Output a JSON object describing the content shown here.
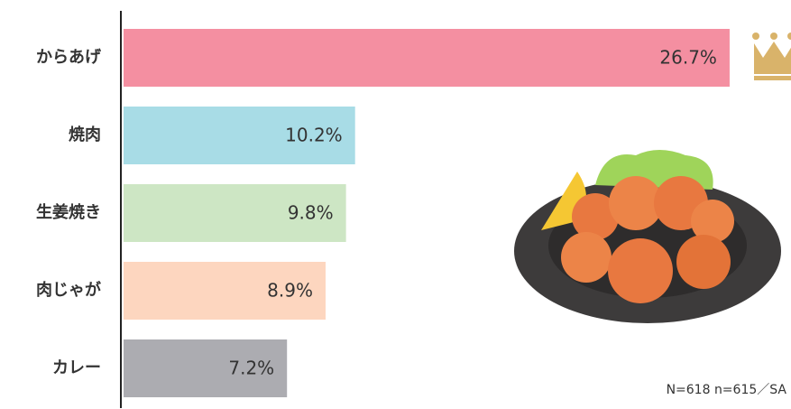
{
  "chart_data": {
    "type": "bar",
    "orientation": "horizontal",
    "categories": [
      "からあげ",
      "焼肉",
      "生姜焼き",
      "肉じゃが",
      "カレー"
    ],
    "values": [
      26.7,
      10.2,
      9.8,
      8.9,
      7.2
    ],
    "value_labels": [
      "26.7%",
      "10.2%",
      "9.8%",
      "8.9%",
      "7.2%"
    ],
    "colors": [
      "#f48fa1",
      "#a8dce6",
      "#cde6c4",
      "#fdd6bf",
      "#acacb1"
    ],
    "xlim": [
      0,
      30
    ],
    "note": "N=618 n=615／SA"
  }
}
